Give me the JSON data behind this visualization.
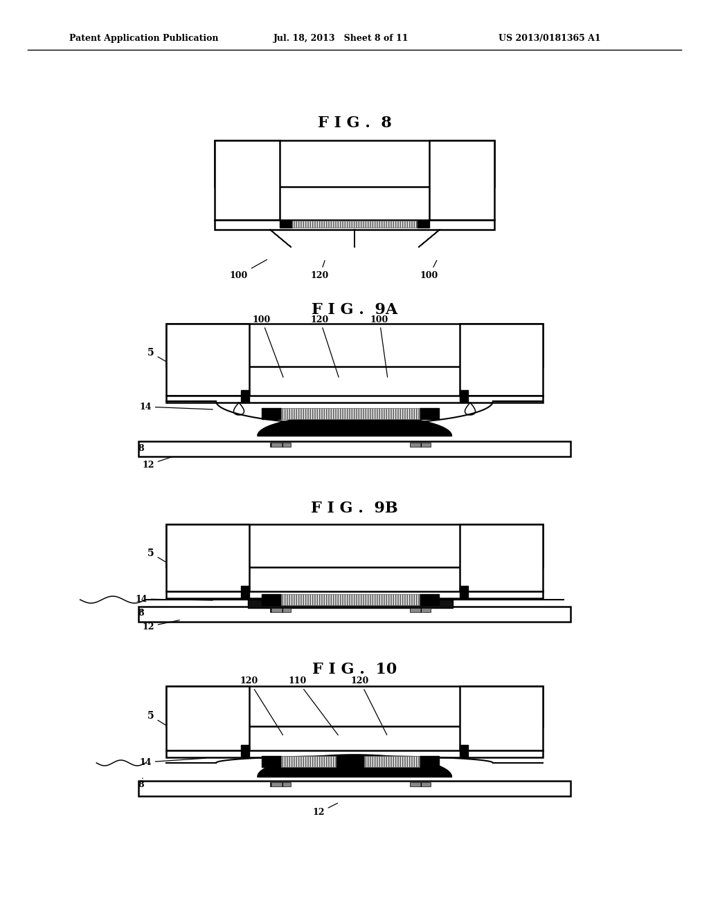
{
  "bg_color": "#ffffff",
  "text_color": "#000000",
  "header_left": "Patent Application Publication",
  "header_mid": "Jul. 18, 2013   Sheet 8 of 11",
  "header_right": "US 2013/0181365 A1",
  "fig8_title": "F I G .  8",
  "fig9a_title": "F I G .  9A",
  "fig9b_title": "F I G .  9B",
  "fig10_title": "F I G .  10",
  "lw": 1.8
}
